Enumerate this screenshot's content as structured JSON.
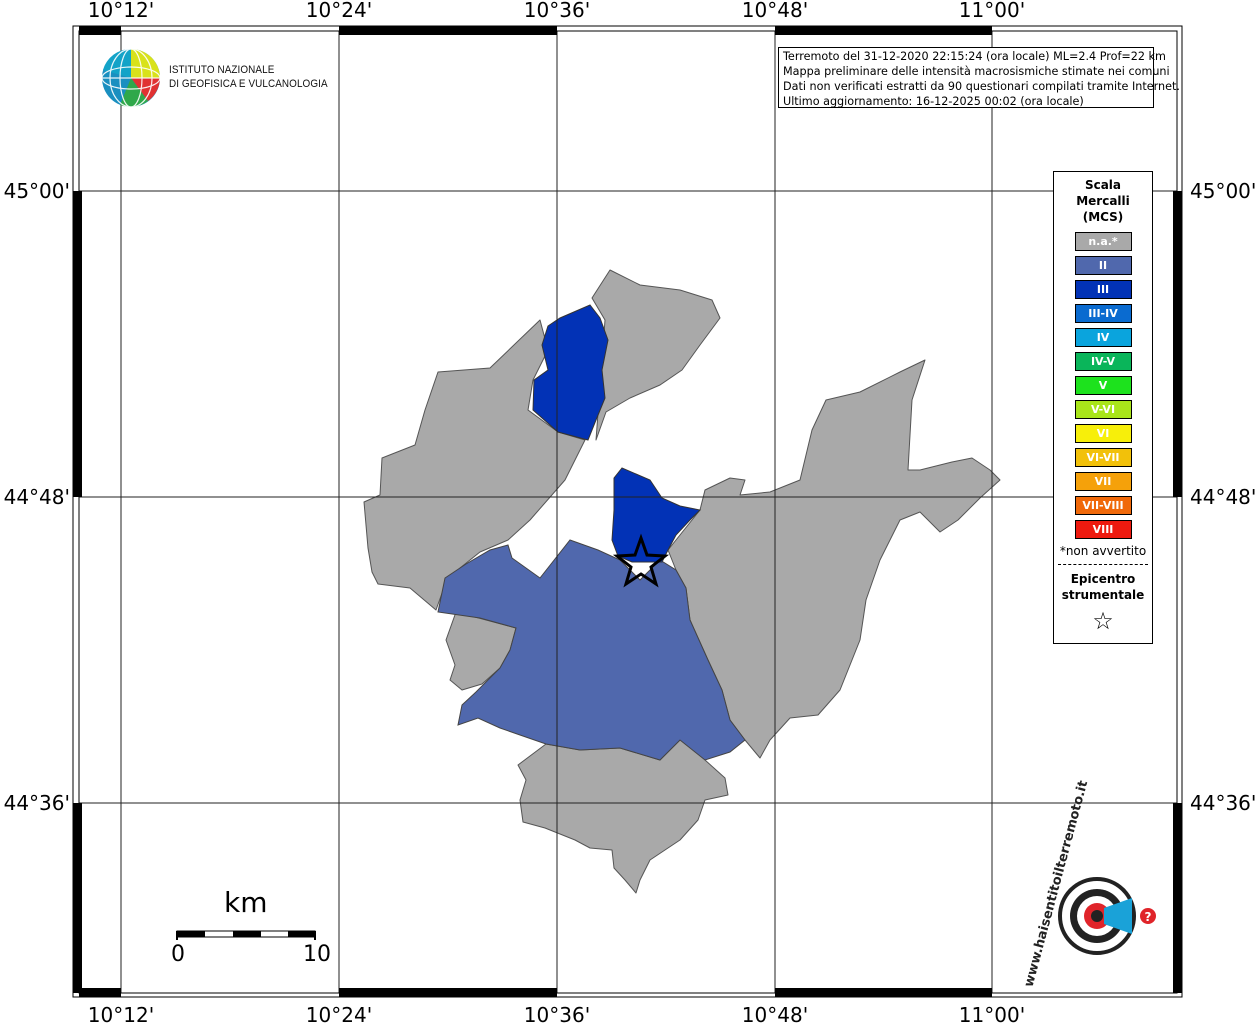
{
  "map": {
    "lon_ticks": [
      "10°12'",
      "10°24'",
      "10°36'",
      "10°48'",
      "11°00'"
    ],
    "lat_ticks": [
      "45°00'",
      "44°48'",
      "44°36'"
    ],
    "epicenter_icon": "star-icon"
  },
  "header": {
    "org_line1": "ISTITUTO NAZIONALE",
    "org_line2": "DI GEOFISICA E VULCANOLOGIA"
  },
  "info": {
    "line1": "Terremoto del 31-12-2020 22:15:24 (ora locale) ML=2.4 Prof=22 km",
    "line2": "Mappa preliminare delle intensità macrosismiche stimate nei comuni",
    "line3": "Dati non verificati estratti da 90 questionari compilati tramite Internet.",
    "line4": "Ultimo aggiornamento: 16-12-2025 00:02 (ora locale)"
  },
  "legend": {
    "title_line1": "Scala",
    "title_line2": "Mercalli",
    "title_line3": "(MCS)",
    "items": [
      {
        "label": "n.a.*",
        "color": "#a9a9a9"
      },
      {
        "label": "II",
        "color": "#5068ad"
      },
      {
        "label": "III",
        "color": "#0232b6"
      },
      {
        "label": "III-IV",
        "color": "#0a6bd0"
      },
      {
        "label": "IV",
        "color": "#0aa4dd"
      },
      {
        "label": "IV-V",
        "color": "#0ab55a"
      },
      {
        "label": "V",
        "color": "#1de21d"
      },
      {
        "label": "V-VI",
        "color": "#a9e51a"
      },
      {
        "label": "VI",
        "color": "#f7ef0a"
      },
      {
        "label": "VI-VII",
        "color": "#f2c10a"
      },
      {
        "label": "VII",
        "color": "#f5a10a"
      },
      {
        "label": "VII-VIII",
        "color": "#f0690a"
      },
      {
        "label": "VIII",
        "color": "#ee1a0f"
      }
    ],
    "note": "*non avvertito",
    "epicenter_line1": "Epicentro",
    "epicenter_line2": "strumentale",
    "epicenter_icon": "star-outline-icon"
  },
  "scalebar": {
    "unit": "km",
    "min": "0",
    "max": "10"
  },
  "logo": {
    "text": "www.haisentitoilterremoto.it"
  }
}
